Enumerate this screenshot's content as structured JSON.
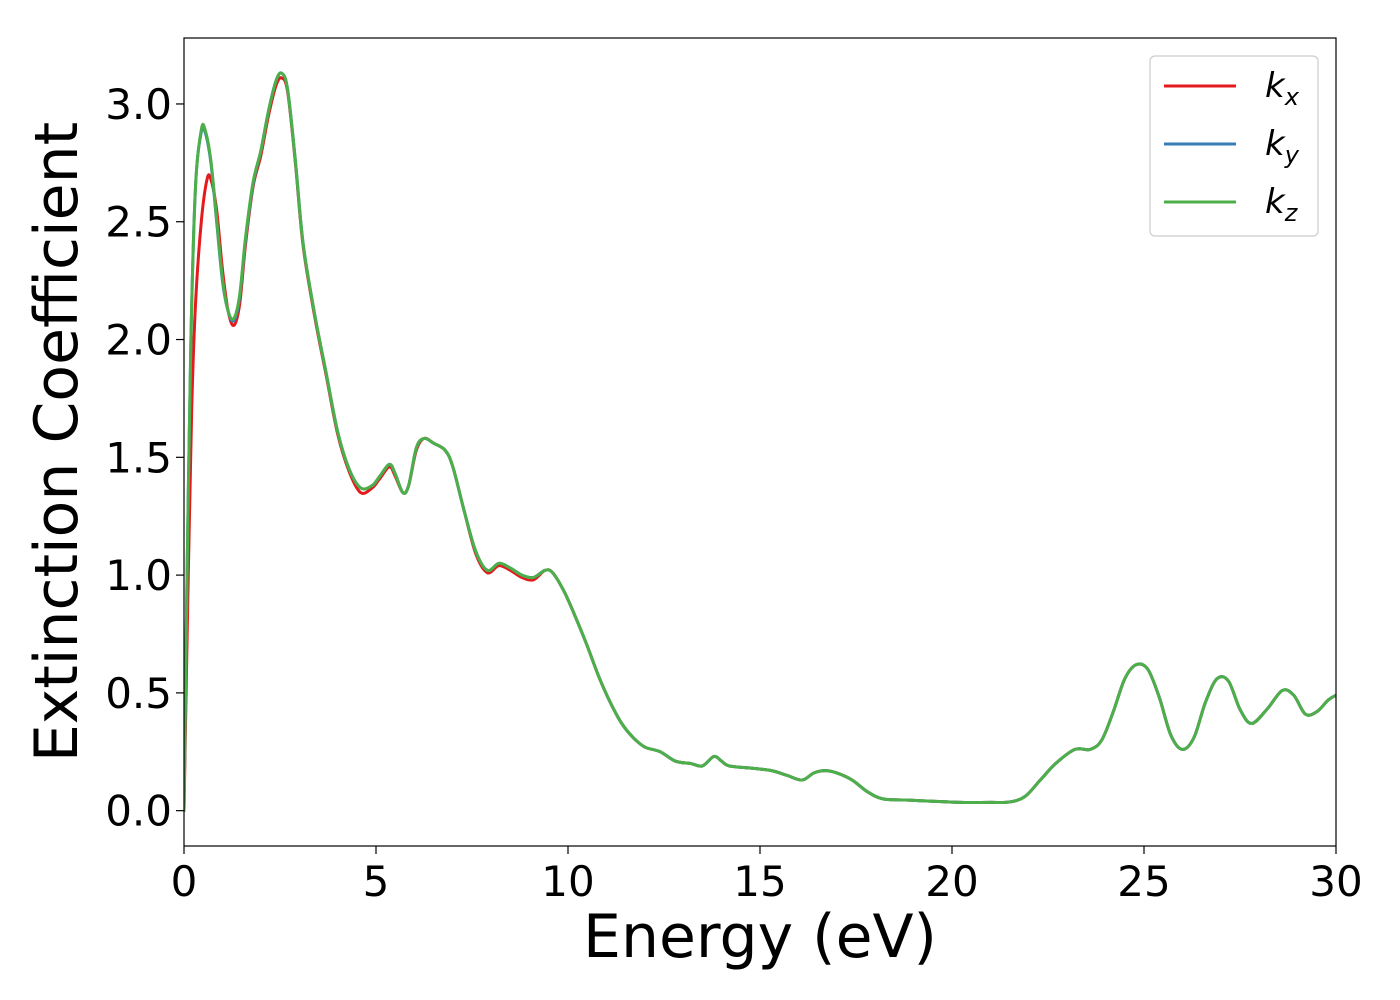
{
  "chart_data": {
    "type": "line",
    "xlabel": "Energy (eV)",
    "ylabel": "Extinction Coefficient",
    "xlim": [
      0,
      30
    ],
    "ylim": [
      -0.15,
      3.28
    ],
    "xticks": [
      0,
      5,
      10,
      15,
      20,
      25,
      30
    ],
    "xtick_labels": [
      "0",
      "5",
      "10",
      "15",
      "20",
      "25",
      "30"
    ],
    "yticks": [
      0.0,
      0.5,
      1.0,
      1.5,
      2.0,
      2.5,
      3.0
    ],
    "ytick_labels": [
      "0.0",
      "0.5",
      "1.0",
      "1.5",
      "2.0",
      "2.5",
      "3.0"
    ],
    "grid": false,
    "legend_position": "top-right",
    "series": [
      {
        "name": "k_x",
        "legend_base": "k",
        "legend_sub": "x",
        "color": "#e41a1c",
        "points": [
          [
            0,
            0
          ],
          [
            0.1,
            0.9
          ],
          [
            0.2,
            1.7
          ],
          [
            0.3,
            2.15
          ],
          [
            0.45,
            2.5
          ],
          [
            0.6,
            2.68
          ],
          [
            0.7,
            2.68
          ],
          [
            0.85,
            2.55
          ],
          [
            1.0,
            2.3
          ],
          [
            1.15,
            2.12
          ],
          [
            1.3,
            2.06
          ],
          [
            1.45,
            2.15
          ],
          [
            1.6,
            2.4
          ],
          [
            1.8,
            2.65
          ],
          [
            2.0,
            2.78
          ],
          [
            2.2,
            2.95
          ],
          [
            2.4,
            3.08
          ],
          [
            2.55,
            3.11
          ],
          [
            2.7,
            3.05
          ],
          [
            2.9,
            2.75
          ],
          [
            3.1,
            2.4
          ],
          [
            3.4,
            2.1
          ],
          [
            3.7,
            1.85
          ],
          [
            4.0,
            1.6
          ],
          [
            4.3,
            1.44
          ],
          [
            4.6,
            1.35
          ],
          [
            4.9,
            1.37
          ],
          [
            5.1,
            1.41
          ],
          [
            5.35,
            1.46
          ],
          [
            5.5,
            1.42
          ],
          [
            5.7,
            1.35
          ],
          [
            5.85,
            1.38
          ],
          [
            6.05,
            1.53
          ],
          [
            6.25,
            1.58
          ],
          [
            6.5,
            1.56
          ],
          [
            6.8,
            1.53
          ],
          [
            7.0,
            1.46
          ],
          [
            7.3,
            1.27
          ],
          [
            7.6,
            1.09
          ],
          [
            7.9,
            1.01
          ],
          [
            8.2,
            1.04
          ],
          [
            8.5,
            1.02
          ],
          [
            8.8,
            0.99
          ],
          [
            9.1,
            0.98
          ],
          [
            9.4,
            1.02
          ],
          [
            9.6,
            1.01
          ],
          [
            9.9,
            0.93
          ],
          [
            10.2,
            0.82
          ],
          [
            10.5,
            0.7
          ],
          [
            10.8,
            0.57
          ],
          [
            11.1,
            0.46
          ],
          [
            11.4,
            0.37
          ],
          [
            11.7,
            0.31
          ],
          [
            12.0,
            0.27
          ],
          [
            12.4,
            0.25
          ],
          [
            12.8,
            0.21
          ],
          [
            13.2,
            0.2
          ],
          [
            13.5,
            0.19
          ],
          [
            13.8,
            0.23
          ],
          [
            14.0,
            0.21
          ],
          [
            14.2,
            0.19
          ],
          [
            14.8,
            0.18
          ],
          [
            15.3,
            0.17
          ],
          [
            15.7,
            0.15
          ],
          [
            16.1,
            0.13
          ],
          [
            16.4,
            0.16
          ],
          [
            16.7,
            0.17
          ],
          [
            17.0,
            0.16
          ],
          [
            17.4,
            0.13
          ],
          [
            17.8,
            0.08
          ],
          [
            18.2,
            0.05
          ],
          [
            18.8,
            0.045
          ],
          [
            19.5,
            0.04
          ],
          [
            20.2,
            0.035
          ],
          [
            21.0,
            0.035
          ],
          [
            21.5,
            0.037
          ],
          [
            21.9,
            0.06
          ],
          [
            22.3,
            0.13
          ],
          [
            22.7,
            0.2
          ],
          [
            23.2,
            0.26
          ],
          [
            23.6,
            0.26
          ],
          [
            23.9,
            0.3
          ],
          [
            24.2,
            0.42
          ],
          [
            24.5,
            0.56
          ],
          [
            24.8,
            0.62
          ],
          [
            25.1,
            0.6
          ],
          [
            25.4,
            0.48
          ],
          [
            25.7,
            0.32
          ],
          [
            26.0,
            0.26
          ],
          [
            26.3,
            0.31
          ],
          [
            26.6,
            0.46
          ],
          [
            26.9,
            0.56
          ],
          [
            27.2,
            0.55
          ],
          [
            27.5,
            0.43
          ],
          [
            27.8,
            0.37
          ],
          [
            28.2,
            0.43
          ],
          [
            28.6,
            0.51
          ],
          [
            28.9,
            0.49
          ],
          [
            29.2,
            0.41
          ],
          [
            29.5,
            0.42
          ],
          [
            29.8,
            0.47
          ],
          [
            30.0,
            0.49
          ]
        ]
      },
      {
        "name": "k_y",
        "legend_base": "k",
        "legend_sub": "y",
        "color": "#377eb8",
        "points": [
          [
            0,
            0
          ],
          [
            0.08,
            1.0
          ],
          [
            0.18,
            2.0
          ],
          [
            0.3,
            2.65
          ],
          [
            0.45,
            2.88
          ],
          [
            0.55,
            2.88
          ],
          [
            0.7,
            2.75
          ],
          [
            0.85,
            2.5
          ],
          [
            1.0,
            2.25
          ],
          [
            1.15,
            2.12
          ],
          [
            1.3,
            2.08
          ],
          [
            1.45,
            2.18
          ],
          [
            1.6,
            2.42
          ],
          [
            1.8,
            2.66
          ],
          [
            2.0,
            2.8
          ],
          [
            2.2,
            2.97
          ],
          [
            2.4,
            3.1
          ],
          [
            2.55,
            3.13
          ],
          [
            2.7,
            3.06
          ],
          [
            2.9,
            2.76
          ],
          [
            3.1,
            2.41
          ],
          [
            3.4,
            2.11
          ],
          [
            3.7,
            1.86
          ],
          [
            4.0,
            1.61
          ],
          [
            4.3,
            1.45
          ],
          [
            4.6,
            1.37
          ],
          [
            4.9,
            1.38
          ],
          [
            5.1,
            1.42
          ],
          [
            5.35,
            1.47
          ],
          [
            5.5,
            1.43
          ],
          [
            5.7,
            1.35
          ],
          [
            5.85,
            1.38
          ],
          [
            6.05,
            1.54
          ],
          [
            6.25,
            1.58
          ],
          [
            6.5,
            1.56
          ],
          [
            6.8,
            1.53
          ],
          [
            7.0,
            1.46
          ],
          [
            7.3,
            1.27
          ],
          [
            7.6,
            1.1
          ],
          [
            7.9,
            1.02
          ],
          [
            8.2,
            1.05
          ],
          [
            8.5,
            1.03
          ],
          [
            8.8,
            1.0
          ],
          [
            9.1,
            0.99
          ],
          [
            9.4,
            1.02
          ],
          [
            9.6,
            1.01
          ],
          [
            9.9,
            0.93
          ],
          [
            10.2,
            0.82
          ],
          [
            10.5,
            0.7
          ],
          [
            10.8,
            0.57
          ],
          [
            11.1,
            0.46
          ],
          [
            11.4,
            0.37
          ],
          [
            11.7,
            0.31
          ],
          [
            12.0,
            0.27
          ],
          [
            12.4,
            0.25
          ],
          [
            12.8,
            0.21
          ],
          [
            13.2,
            0.2
          ],
          [
            13.5,
            0.19
          ],
          [
            13.8,
            0.23
          ],
          [
            14.0,
            0.21
          ],
          [
            14.2,
            0.19
          ],
          [
            14.8,
            0.18
          ],
          [
            15.3,
            0.17
          ],
          [
            15.7,
            0.15
          ],
          [
            16.1,
            0.13
          ],
          [
            16.4,
            0.16
          ],
          [
            16.7,
            0.17
          ],
          [
            17.0,
            0.16
          ],
          [
            17.4,
            0.13
          ],
          [
            17.8,
            0.08
          ],
          [
            18.2,
            0.05
          ],
          [
            18.8,
            0.045
          ],
          [
            19.5,
            0.04
          ],
          [
            20.2,
            0.035
          ],
          [
            21.0,
            0.035
          ],
          [
            21.5,
            0.037
          ],
          [
            21.9,
            0.06
          ],
          [
            22.3,
            0.13
          ],
          [
            22.7,
            0.2
          ],
          [
            23.2,
            0.26
          ],
          [
            23.6,
            0.26
          ],
          [
            23.9,
            0.3
          ],
          [
            24.2,
            0.42
          ],
          [
            24.5,
            0.56
          ],
          [
            24.8,
            0.62
          ],
          [
            25.1,
            0.6
          ],
          [
            25.4,
            0.48
          ],
          [
            25.7,
            0.32
          ],
          [
            26.0,
            0.26
          ],
          [
            26.3,
            0.31
          ],
          [
            26.6,
            0.46
          ],
          [
            26.9,
            0.56
          ],
          [
            27.2,
            0.55
          ],
          [
            27.5,
            0.43
          ],
          [
            27.8,
            0.37
          ],
          [
            28.2,
            0.43
          ],
          [
            28.6,
            0.51
          ],
          [
            28.9,
            0.49
          ],
          [
            29.2,
            0.41
          ],
          [
            29.5,
            0.42
          ],
          [
            29.8,
            0.47
          ],
          [
            30.0,
            0.49
          ]
        ]
      },
      {
        "name": "k_z",
        "legend_base": "k",
        "legend_sub": "z",
        "color": "#4daf4a",
        "points": [
          [
            0,
            0
          ],
          [
            0.08,
            1.0
          ],
          [
            0.18,
            2.0
          ],
          [
            0.3,
            2.65
          ],
          [
            0.45,
            2.89
          ],
          [
            0.55,
            2.89
          ],
          [
            0.7,
            2.76
          ],
          [
            0.85,
            2.51
          ],
          [
            1.0,
            2.26
          ],
          [
            1.15,
            2.12
          ],
          [
            1.3,
            2.09
          ],
          [
            1.45,
            2.19
          ],
          [
            1.6,
            2.43
          ],
          [
            1.8,
            2.67
          ],
          [
            2.0,
            2.8
          ],
          [
            2.2,
            2.97
          ],
          [
            2.4,
            3.1
          ],
          [
            2.55,
            3.13
          ],
          [
            2.7,
            3.06
          ],
          [
            2.9,
            2.76
          ],
          [
            3.1,
            2.41
          ],
          [
            3.4,
            2.11
          ],
          [
            3.7,
            1.86
          ],
          [
            4.0,
            1.61
          ],
          [
            4.3,
            1.45
          ],
          [
            4.6,
            1.37
          ],
          [
            4.9,
            1.38
          ],
          [
            5.1,
            1.42
          ],
          [
            5.35,
            1.47
          ],
          [
            5.5,
            1.43
          ],
          [
            5.7,
            1.35
          ],
          [
            5.85,
            1.38
          ],
          [
            6.05,
            1.54
          ],
          [
            6.25,
            1.58
          ],
          [
            6.5,
            1.56
          ],
          [
            6.8,
            1.53
          ],
          [
            7.0,
            1.46
          ],
          [
            7.3,
            1.27
          ],
          [
            7.6,
            1.1
          ],
          [
            7.9,
            1.02
          ],
          [
            8.2,
            1.05
          ],
          [
            8.5,
            1.03
          ],
          [
            8.8,
            1.0
          ],
          [
            9.1,
            0.99
          ],
          [
            9.4,
            1.02
          ],
          [
            9.6,
            1.01
          ],
          [
            9.9,
            0.93
          ],
          [
            10.2,
            0.82
          ],
          [
            10.5,
            0.7
          ],
          [
            10.8,
            0.57
          ],
          [
            11.1,
            0.46
          ],
          [
            11.4,
            0.37
          ],
          [
            11.7,
            0.31
          ],
          [
            12.0,
            0.27
          ],
          [
            12.4,
            0.25
          ],
          [
            12.8,
            0.21
          ],
          [
            13.2,
            0.2
          ],
          [
            13.5,
            0.19
          ],
          [
            13.8,
            0.23
          ],
          [
            14.0,
            0.21
          ],
          [
            14.2,
            0.19
          ],
          [
            14.8,
            0.18
          ],
          [
            15.3,
            0.17
          ],
          [
            15.7,
            0.15
          ],
          [
            16.1,
            0.13
          ],
          [
            16.4,
            0.16
          ],
          [
            16.7,
            0.17
          ],
          [
            17.0,
            0.16
          ],
          [
            17.4,
            0.13
          ],
          [
            17.8,
            0.08
          ],
          [
            18.2,
            0.05
          ],
          [
            18.8,
            0.045
          ],
          [
            19.5,
            0.04
          ],
          [
            20.2,
            0.035
          ],
          [
            21.0,
            0.035
          ],
          [
            21.5,
            0.037
          ],
          [
            21.9,
            0.06
          ],
          [
            22.3,
            0.13
          ],
          [
            22.7,
            0.2
          ],
          [
            23.2,
            0.26
          ],
          [
            23.6,
            0.26
          ],
          [
            23.9,
            0.3
          ],
          [
            24.2,
            0.42
          ],
          [
            24.5,
            0.56
          ],
          [
            24.8,
            0.62
          ],
          [
            25.1,
            0.6
          ],
          [
            25.4,
            0.48
          ],
          [
            25.7,
            0.32
          ],
          [
            26.0,
            0.26
          ],
          [
            26.3,
            0.31
          ],
          [
            26.6,
            0.46
          ],
          [
            26.9,
            0.56
          ],
          [
            27.2,
            0.55
          ],
          [
            27.5,
            0.43
          ],
          [
            27.8,
            0.37
          ],
          [
            28.2,
            0.43
          ],
          [
            28.6,
            0.51
          ],
          [
            28.9,
            0.49
          ],
          [
            29.2,
            0.41
          ],
          [
            29.5,
            0.42
          ],
          [
            29.8,
            0.47
          ],
          [
            30.0,
            0.49
          ]
        ]
      }
    ]
  }
}
